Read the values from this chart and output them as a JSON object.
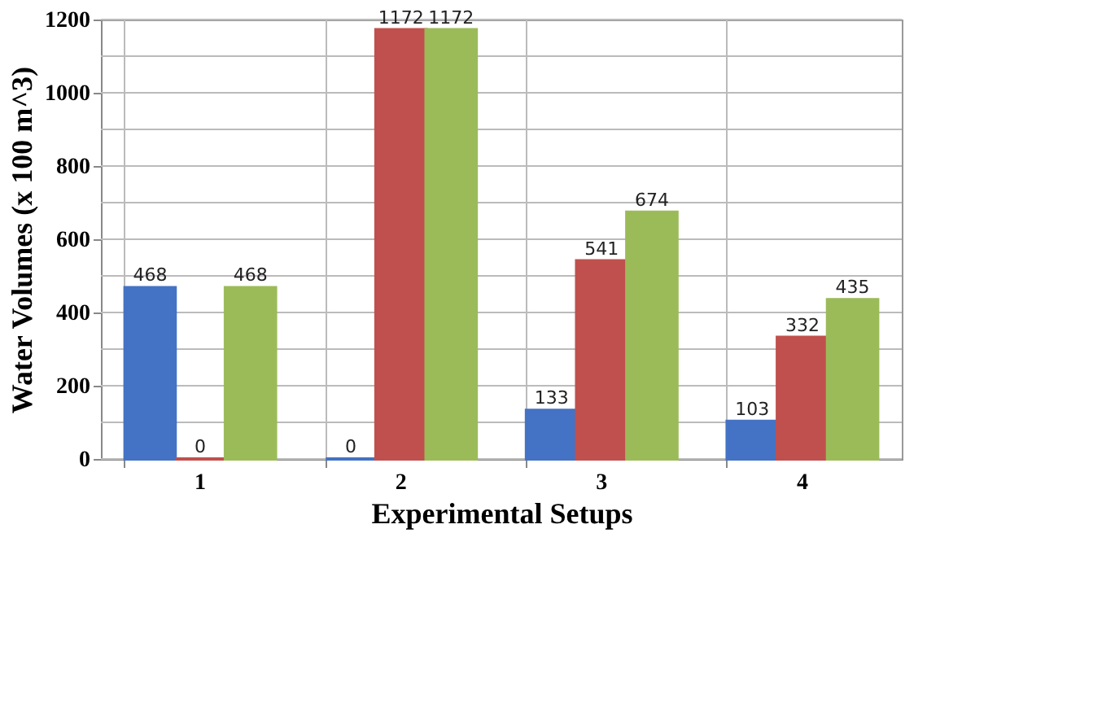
{
  "chart_data": {
    "type": "bar",
    "xlabel": "Experimental Setups",
    "ylabel": "Water Volumes (x 100  m^3)",
    "categories": [
      "1",
      "2",
      "3",
      "4"
    ],
    "series": [
      {
        "color": "#4472c4",
        "values": [
          468,
          0,
          133,
          103
        ]
      },
      {
        "color": "#c0504d",
        "values": [
          0,
          1172,
          541,
          332
        ]
      },
      {
        "color": "#9bbb59",
        "values": [
          468,
          1172,
          674,
          435
        ]
      }
    ],
    "ylim": [
      0,
      1200
    ],
    "yticks": [
      0,
      {
        "value": 100,
        "label": null
      },
      200,
      {
        "value": 300,
        "label": null
      },
      400,
      {
        "value": 500,
        "label": null
      },
      600,
      {
        "value": 700,
        "label": null
      },
      800,
      {
        "value": 900,
        "label": null
      },
      1000,
      {
        "value": 1100,
        "label": null
      },
      1200
    ],
    "grid": true,
    "legend": false,
    "data_labels": true
  }
}
